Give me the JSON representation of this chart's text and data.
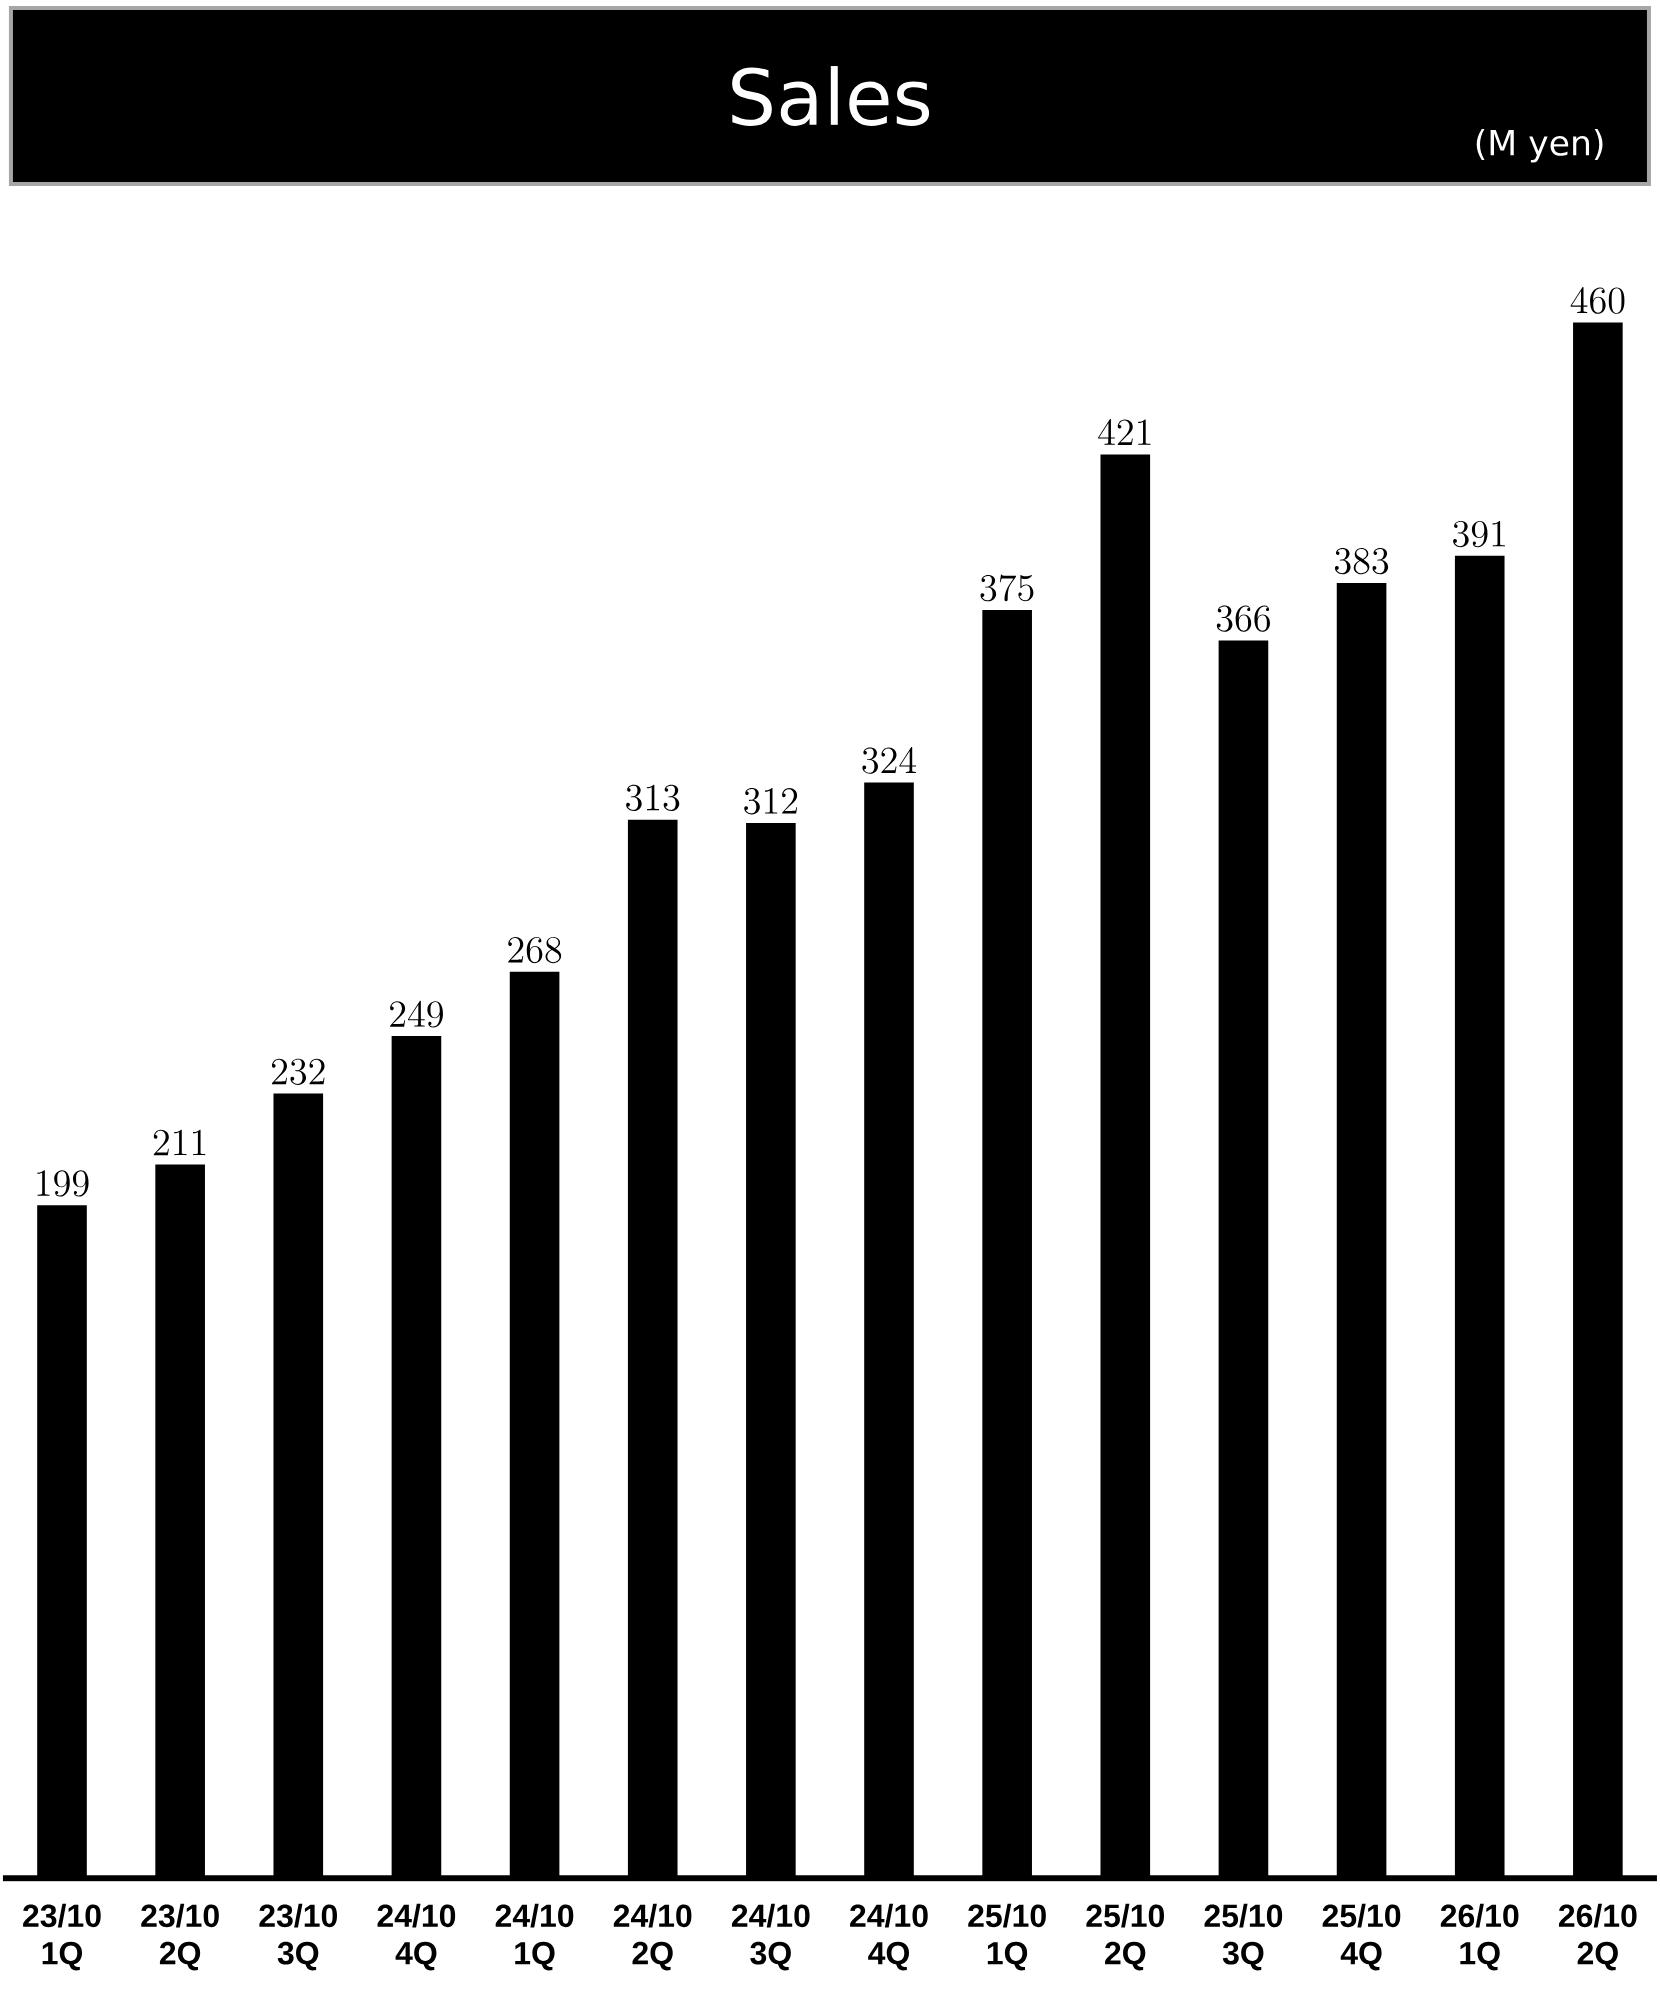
{
  "chart_data": {
    "type": "bar",
    "title": "Sales",
    "subtitle": "(M yen)",
    "categories": [
      "23/10 1Q",
      "23/10 2Q",
      "23/10 3Q",
      "24/10 4Q",
      "24/10 1Q",
      "24/10 2Q",
      "24/10 3Q",
      "24/10 4Q",
      "25/10 1Q",
      "25/10 2Q",
      "25/10 3Q",
      "25/10 4Q",
      "26/10 1Q",
      "26/10 2Q"
    ],
    "values": [
      199,
      211,
      232,
      249,
      268,
      313,
      312,
      324,
      375,
      421,
      366,
      383,
      391,
      460
    ],
    "color": "#000000",
    "data_labels": true
  }
}
